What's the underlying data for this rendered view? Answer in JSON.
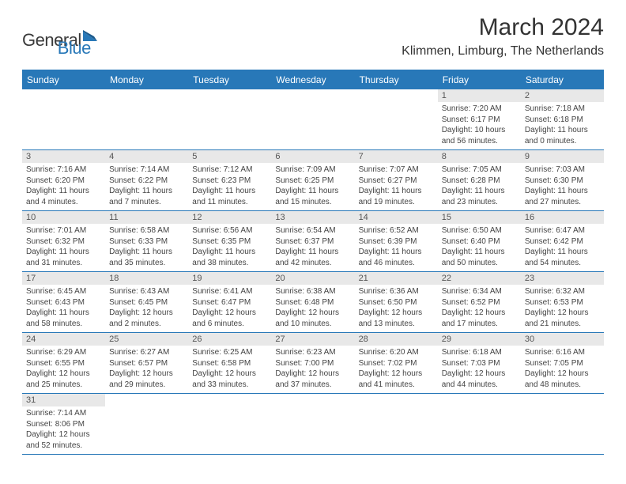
{
  "logo": {
    "part1": "General",
    "part2": "Blue"
  },
  "title": "March 2024",
  "location": "Klimmen, Limburg, The Netherlands",
  "weekdays": [
    "Sunday",
    "Monday",
    "Tuesday",
    "Wednesday",
    "Thursday",
    "Friday",
    "Saturday"
  ],
  "colors": {
    "header_bg": "#2878b8",
    "daynum_bg": "#e8e8e8",
    "text": "#333333",
    "border": "#2878b8"
  },
  "typography": {
    "title_fontsize": 30,
    "location_fontsize": 16,
    "weekday_fontsize": 12,
    "daynum_fontsize": 11,
    "body_fontsize": 10
  },
  "weeks": [
    [
      {
        "blank": true
      },
      {
        "blank": true
      },
      {
        "blank": true
      },
      {
        "blank": true
      },
      {
        "blank": true
      },
      {
        "day": "1",
        "sunrise": "Sunrise: 7:20 AM",
        "sunset": "Sunset: 6:17 PM",
        "daylight1": "Daylight: 10 hours",
        "daylight2": "and 56 minutes."
      },
      {
        "day": "2",
        "sunrise": "Sunrise: 7:18 AM",
        "sunset": "Sunset: 6:18 PM",
        "daylight1": "Daylight: 11 hours",
        "daylight2": "and 0 minutes."
      }
    ],
    [
      {
        "day": "3",
        "sunrise": "Sunrise: 7:16 AM",
        "sunset": "Sunset: 6:20 PM",
        "daylight1": "Daylight: 11 hours",
        "daylight2": "and 4 minutes."
      },
      {
        "day": "4",
        "sunrise": "Sunrise: 7:14 AM",
        "sunset": "Sunset: 6:22 PM",
        "daylight1": "Daylight: 11 hours",
        "daylight2": "and 7 minutes."
      },
      {
        "day": "5",
        "sunrise": "Sunrise: 7:12 AM",
        "sunset": "Sunset: 6:23 PM",
        "daylight1": "Daylight: 11 hours",
        "daylight2": "and 11 minutes."
      },
      {
        "day": "6",
        "sunrise": "Sunrise: 7:09 AM",
        "sunset": "Sunset: 6:25 PM",
        "daylight1": "Daylight: 11 hours",
        "daylight2": "and 15 minutes."
      },
      {
        "day": "7",
        "sunrise": "Sunrise: 7:07 AM",
        "sunset": "Sunset: 6:27 PM",
        "daylight1": "Daylight: 11 hours",
        "daylight2": "and 19 minutes."
      },
      {
        "day": "8",
        "sunrise": "Sunrise: 7:05 AM",
        "sunset": "Sunset: 6:28 PM",
        "daylight1": "Daylight: 11 hours",
        "daylight2": "and 23 minutes."
      },
      {
        "day": "9",
        "sunrise": "Sunrise: 7:03 AM",
        "sunset": "Sunset: 6:30 PM",
        "daylight1": "Daylight: 11 hours",
        "daylight2": "and 27 minutes."
      }
    ],
    [
      {
        "day": "10",
        "sunrise": "Sunrise: 7:01 AM",
        "sunset": "Sunset: 6:32 PM",
        "daylight1": "Daylight: 11 hours",
        "daylight2": "and 31 minutes."
      },
      {
        "day": "11",
        "sunrise": "Sunrise: 6:58 AM",
        "sunset": "Sunset: 6:33 PM",
        "daylight1": "Daylight: 11 hours",
        "daylight2": "and 35 minutes."
      },
      {
        "day": "12",
        "sunrise": "Sunrise: 6:56 AM",
        "sunset": "Sunset: 6:35 PM",
        "daylight1": "Daylight: 11 hours",
        "daylight2": "and 38 minutes."
      },
      {
        "day": "13",
        "sunrise": "Sunrise: 6:54 AM",
        "sunset": "Sunset: 6:37 PM",
        "daylight1": "Daylight: 11 hours",
        "daylight2": "and 42 minutes."
      },
      {
        "day": "14",
        "sunrise": "Sunrise: 6:52 AM",
        "sunset": "Sunset: 6:39 PM",
        "daylight1": "Daylight: 11 hours",
        "daylight2": "and 46 minutes."
      },
      {
        "day": "15",
        "sunrise": "Sunrise: 6:50 AM",
        "sunset": "Sunset: 6:40 PM",
        "daylight1": "Daylight: 11 hours",
        "daylight2": "and 50 minutes."
      },
      {
        "day": "16",
        "sunrise": "Sunrise: 6:47 AM",
        "sunset": "Sunset: 6:42 PM",
        "daylight1": "Daylight: 11 hours",
        "daylight2": "and 54 minutes."
      }
    ],
    [
      {
        "day": "17",
        "sunrise": "Sunrise: 6:45 AM",
        "sunset": "Sunset: 6:43 PM",
        "daylight1": "Daylight: 11 hours",
        "daylight2": "and 58 minutes."
      },
      {
        "day": "18",
        "sunrise": "Sunrise: 6:43 AM",
        "sunset": "Sunset: 6:45 PM",
        "daylight1": "Daylight: 12 hours",
        "daylight2": "and 2 minutes."
      },
      {
        "day": "19",
        "sunrise": "Sunrise: 6:41 AM",
        "sunset": "Sunset: 6:47 PM",
        "daylight1": "Daylight: 12 hours",
        "daylight2": "and 6 minutes."
      },
      {
        "day": "20",
        "sunrise": "Sunrise: 6:38 AM",
        "sunset": "Sunset: 6:48 PM",
        "daylight1": "Daylight: 12 hours",
        "daylight2": "and 10 minutes."
      },
      {
        "day": "21",
        "sunrise": "Sunrise: 6:36 AM",
        "sunset": "Sunset: 6:50 PM",
        "daylight1": "Daylight: 12 hours",
        "daylight2": "and 13 minutes."
      },
      {
        "day": "22",
        "sunrise": "Sunrise: 6:34 AM",
        "sunset": "Sunset: 6:52 PM",
        "daylight1": "Daylight: 12 hours",
        "daylight2": "and 17 minutes."
      },
      {
        "day": "23",
        "sunrise": "Sunrise: 6:32 AM",
        "sunset": "Sunset: 6:53 PM",
        "daylight1": "Daylight: 12 hours",
        "daylight2": "and 21 minutes."
      }
    ],
    [
      {
        "day": "24",
        "sunrise": "Sunrise: 6:29 AM",
        "sunset": "Sunset: 6:55 PM",
        "daylight1": "Daylight: 12 hours",
        "daylight2": "and 25 minutes."
      },
      {
        "day": "25",
        "sunrise": "Sunrise: 6:27 AM",
        "sunset": "Sunset: 6:57 PM",
        "daylight1": "Daylight: 12 hours",
        "daylight2": "and 29 minutes."
      },
      {
        "day": "26",
        "sunrise": "Sunrise: 6:25 AM",
        "sunset": "Sunset: 6:58 PM",
        "daylight1": "Daylight: 12 hours",
        "daylight2": "and 33 minutes."
      },
      {
        "day": "27",
        "sunrise": "Sunrise: 6:23 AM",
        "sunset": "Sunset: 7:00 PM",
        "daylight1": "Daylight: 12 hours",
        "daylight2": "and 37 minutes."
      },
      {
        "day": "28",
        "sunrise": "Sunrise: 6:20 AM",
        "sunset": "Sunset: 7:02 PM",
        "daylight1": "Daylight: 12 hours",
        "daylight2": "and 41 minutes."
      },
      {
        "day": "29",
        "sunrise": "Sunrise: 6:18 AM",
        "sunset": "Sunset: 7:03 PM",
        "daylight1": "Daylight: 12 hours",
        "daylight2": "and 44 minutes."
      },
      {
        "day": "30",
        "sunrise": "Sunrise: 6:16 AM",
        "sunset": "Sunset: 7:05 PM",
        "daylight1": "Daylight: 12 hours",
        "daylight2": "and 48 minutes."
      }
    ],
    [
      {
        "day": "31",
        "sunrise": "Sunrise: 7:14 AM",
        "sunset": "Sunset: 8:06 PM",
        "daylight1": "Daylight: 12 hours",
        "daylight2": "and 52 minutes."
      },
      {
        "blank": true
      },
      {
        "blank": true
      },
      {
        "blank": true
      },
      {
        "blank": true
      },
      {
        "blank": true
      },
      {
        "blank": true
      }
    ]
  ]
}
